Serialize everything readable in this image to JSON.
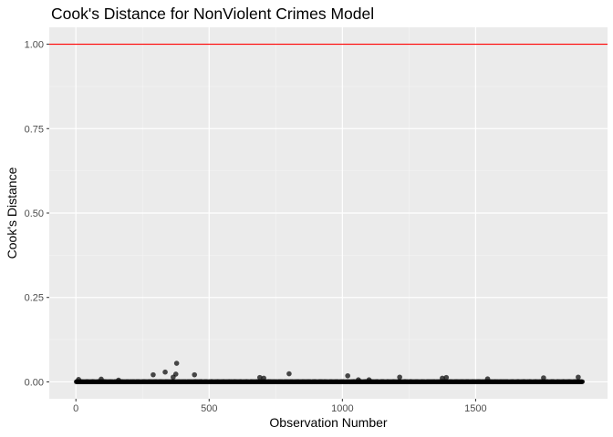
{
  "chart_data": {
    "type": "scatter",
    "title": "Cook's Distance for NonViolent Crimes Model",
    "xlabel": "Observation Number",
    "ylabel": "Cook's Distance",
    "xlim": [
      -100,
      1995
    ],
    "ylim": [
      -0.05,
      1.05
    ],
    "x_ticks": [
      0,
      500,
      1000,
      1500
    ],
    "x_tick_labels": [
      "0",
      "500",
      "1000",
      "1500"
    ],
    "y_ticks": [
      0,
      0.25,
      0.5,
      0.75,
      1.0
    ],
    "y_tick_labels": [
      "0.00",
      "0.25",
      "0.50",
      "0.75",
      "1.00"
    ],
    "threshold_line": {
      "y": 1.0,
      "color": "#ff0000"
    },
    "n_observations": 1901,
    "points_color": "#000000",
    "notable_points": [
      {
        "x": 10,
        "y": 0.007
      },
      {
        "x": 95,
        "y": 0.008
      },
      {
        "x": 160,
        "y": 0.005
      },
      {
        "x": 290,
        "y": 0.021
      },
      {
        "x": 335,
        "y": 0.029
      },
      {
        "x": 365,
        "y": 0.014
      },
      {
        "x": 375,
        "y": 0.023
      },
      {
        "x": 378,
        "y": 0.055
      },
      {
        "x": 445,
        "y": 0.021
      },
      {
        "x": 690,
        "y": 0.013
      },
      {
        "x": 705,
        "y": 0.011
      },
      {
        "x": 800,
        "y": 0.024
      },
      {
        "x": 1020,
        "y": 0.018
      },
      {
        "x": 1060,
        "y": 0.006
      },
      {
        "x": 1100,
        "y": 0.006
      },
      {
        "x": 1215,
        "y": 0.014
      },
      {
        "x": 1375,
        "y": 0.011
      },
      {
        "x": 1390,
        "y": 0.013
      },
      {
        "x": 1545,
        "y": 0.009
      },
      {
        "x": 1755,
        "y": 0.012
      },
      {
        "x": 1885,
        "y": 0.014
      }
    ]
  }
}
